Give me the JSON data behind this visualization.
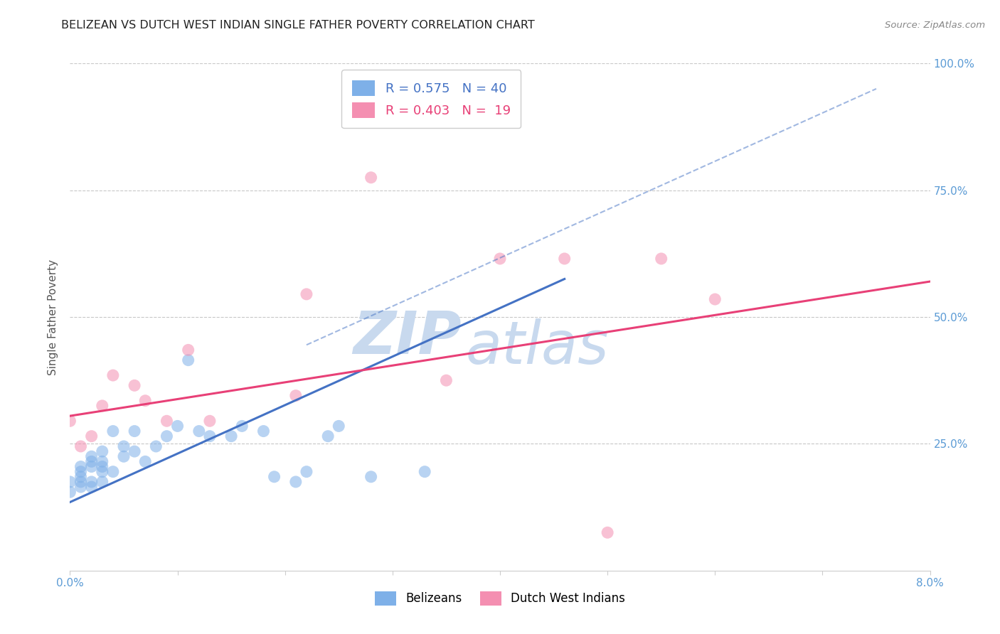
{
  "title": "BELIZEAN VS DUTCH WEST INDIAN SINGLE FATHER POVERTY CORRELATION CHART",
  "source": "Source: ZipAtlas.com",
  "ylabel": "Single Father Poverty",
  "x_min": 0.0,
  "x_max": 0.08,
  "y_min": 0.0,
  "y_max": 1.0,
  "belizean_R": "0.575",
  "belizean_N": "40",
  "dutch_R": "0.403",
  "dutch_N": "19",
  "blue_color": "#7EB0E8",
  "pink_color": "#F48FB1",
  "blue_line_color": "#4472C4",
  "pink_line_color": "#E84077",
  "axis_color": "#5B9BD5",
  "watermark_color": "#C8D9EE",
  "belizean_x": [
    0.0,
    0.0,
    0.001,
    0.001,
    0.001,
    0.001,
    0.001,
    0.002,
    0.002,
    0.002,
    0.002,
    0.002,
    0.003,
    0.003,
    0.003,
    0.003,
    0.003,
    0.004,
    0.004,
    0.005,
    0.005,
    0.006,
    0.006,
    0.007,
    0.008,
    0.009,
    0.01,
    0.011,
    0.012,
    0.013,
    0.015,
    0.016,
    0.018,
    0.019,
    0.021,
    0.022,
    0.024,
    0.025,
    0.028,
    0.033
  ],
  "belizean_y": [
    0.175,
    0.155,
    0.165,
    0.175,
    0.185,
    0.195,
    0.205,
    0.165,
    0.175,
    0.205,
    0.215,
    0.225,
    0.175,
    0.195,
    0.205,
    0.215,
    0.235,
    0.195,
    0.275,
    0.225,
    0.245,
    0.235,
    0.275,
    0.215,
    0.245,
    0.265,
    0.285,
    0.415,
    0.275,
    0.265,
    0.265,
    0.285,
    0.275,
    0.185,
    0.175,
    0.195,
    0.265,
    0.285,
    0.185,
    0.195
  ],
  "dutch_x": [
    0.0,
    0.001,
    0.002,
    0.003,
    0.004,
    0.006,
    0.007,
    0.009,
    0.011,
    0.013,
    0.021,
    0.022,
    0.028,
    0.035,
    0.04,
    0.046,
    0.05,
    0.055,
    0.06
  ],
  "dutch_y": [
    0.295,
    0.245,
    0.265,
    0.325,
    0.385,
    0.365,
    0.335,
    0.295,
    0.435,
    0.295,
    0.345,
    0.545,
    0.775,
    0.375,
    0.615,
    0.615,
    0.075,
    0.615,
    0.535
  ],
  "blue_line_x": [
    0.0,
    0.046
  ],
  "blue_line_y": [
    0.135,
    0.575
  ],
  "pink_line_x": [
    0.0,
    0.08
  ],
  "pink_line_y": [
    0.305,
    0.57
  ],
  "dashed_line_x": [
    0.022,
    0.075
  ],
  "dashed_line_y": [
    0.445,
    0.95
  ],
  "marker_size": 150,
  "alpha": 0.55
}
